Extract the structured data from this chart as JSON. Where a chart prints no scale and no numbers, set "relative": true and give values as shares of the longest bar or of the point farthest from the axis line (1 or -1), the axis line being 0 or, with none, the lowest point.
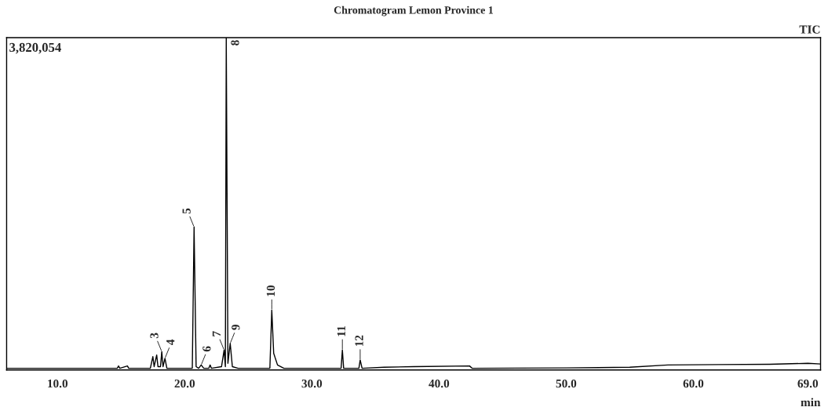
{
  "chart_data": {
    "type": "line",
    "title": "Chromatogram Lemon Province 1",
    "xlabel": "min",
    "relative": true,
    "xlim": [
      6.0,
      70.0
    ],
    "xticks": [
      {
        "value": 10,
        "label": "10.0"
      },
      {
        "value": 20,
        "label": "20.0"
      },
      {
        "value": 30,
        "label": "30.0"
      },
      {
        "value": 40,
        "label": "40.0"
      },
      {
        "value": 50,
        "label": "50.0"
      },
      {
        "value": 60,
        "label": "60.0"
      },
      {
        "value": 69,
        "label": "69.0"
      }
    ],
    "tick_labels": "x",
    "grid": false,
    "legend": false,
    "marker": "none",
    "line_style": "solid",
    "series": [
      {
        "color": "#000000",
        "x": [
          6.0,
          10.0,
          14.7,
          14.8,
          14.9,
          15.5,
          15.6,
          15.7,
          17.3,
          17.5,
          17.6,
          17.8,
          17.9,
          18.1,
          18.2,
          18.3,
          18.45,
          18.6,
          20.6,
          20.74,
          20.9,
          21.1,
          21.3,
          21.5,
          21.9,
          22.0,
          22.1,
          22.9,
          23.1,
          23.2,
          23.27,
          23.4,
          23.58,
          23.75,
          24.2,
          26.7,
          26.85,
          27.0,
          27.3,
          27.8,
          32.3,
          32.4,
          32.5,
          33.7,
          33.8,
          33.95,
          35.7,
          38.0,
          42.4,
          42.6,
          50.0,
          55.0,
          58.0,
          62.0,
          66.0,
          69.0,
          70.0
        ],
        "values": [
          0.005,
          0.005,
          0.005,
          0.012,
          0.005,
          0.012,
          0.005,
          0.005,
          0.005,
          0.04,
          0.01,
          0.045,
          0.01,
          0.01,
          0.055,
          0.01,
          0.035,
          0.005,
          0.005,
          0.43,
          0.01,
          0.005,
          0.015,
          0.005,
          0.005,
          0.015,
          0.005,
          0.01,
          0.06,
          0.01,
          1.0,
          0.02,
          0.08,
          0.01,
          0.005,
          0.005,
          0.18,
          0.05,
          0.015,
          0.005,
          0.005,
          0.06,
          0.005,
          0.005,
          0.03,
          0.005,
          0.008,
          0.01,
          0.012,
          0.005,
          0.006,
          0.008,
          0.015,
          0.016,
          0.017,
          0.02,
          0.018
        ]
      }
    ],
    "annotations": [
      {
        "text": "3",
        "x": 18.2,
        "y": 0.055
      },
      {
        "text": "4",
        "x": 18.45,
        "y": 0.035
      },
      {
        "text": "5",
        "x": 20.74,
        "y": 0.43
      },
      {
        "text": "6",
        "x": 21.3,
        "y": 0.015
      },
      {
        "text": "7",
        "x": 23.1,
        "y": 0.06
      },
      {
        "text": "8",
        "x": 23.27,
        "y": 1.0
      },
      {
        "text": "9",
        "x": 23.58,
        "y": 0.08
      },
      {
        "text": "10",
        "x": 26.85,
        "y": 0.18
      },
      {
        "text": "11",
        "x": 32.4,
        "y": 0.06
      },
      {
        "text": "12",
        "x": 33.8,
        "y": 0.03
      },
      "3,820,054",
      "TIC"
    ]
  }
}
